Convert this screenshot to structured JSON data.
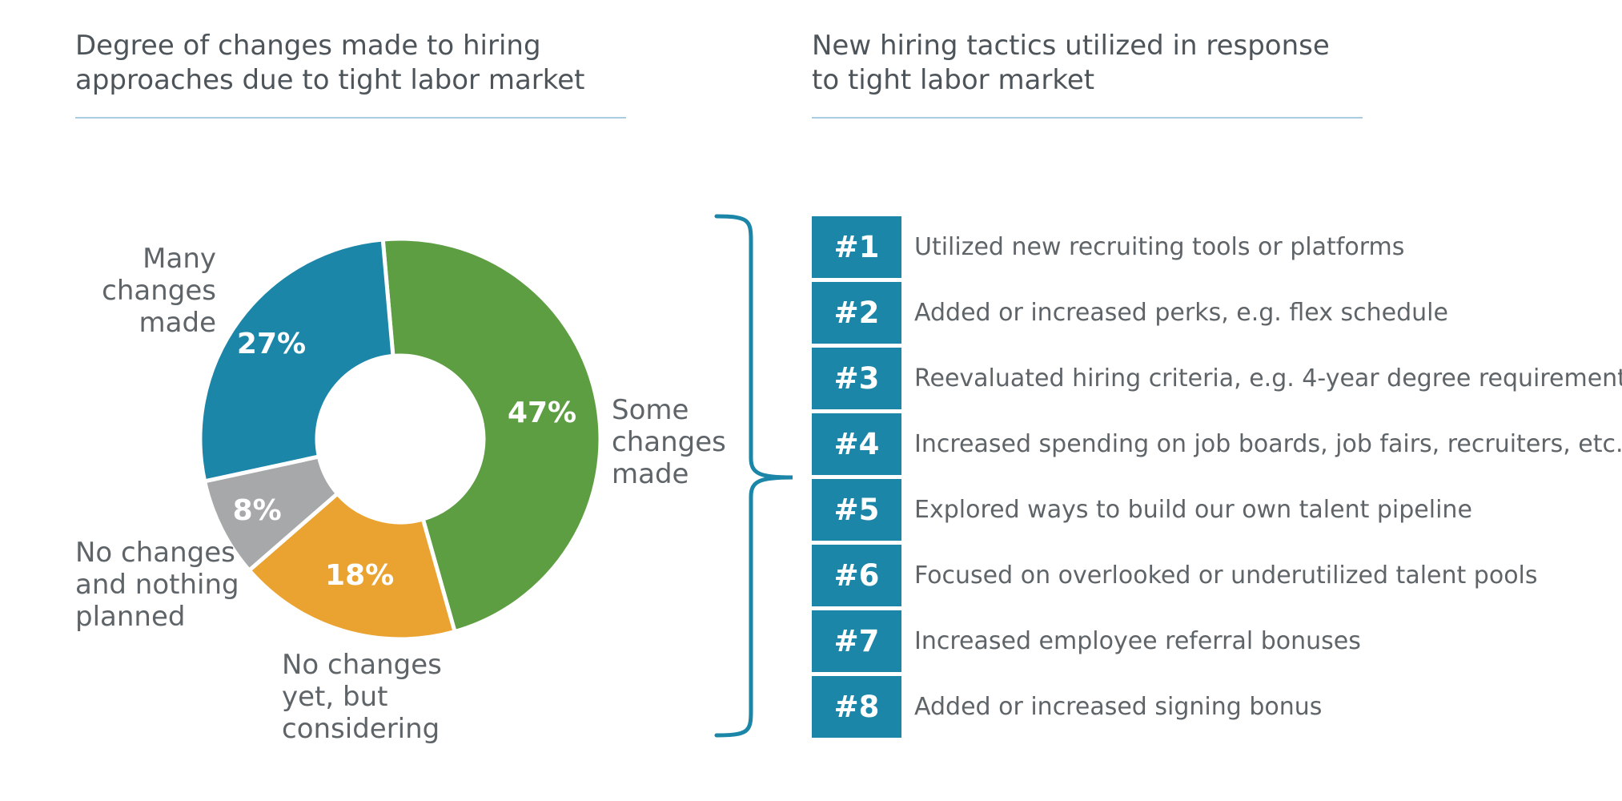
{
  "left_panel": {
    "title": "Degree of changes made to hiring\napproaches due to tight labor market"
  },
  "right_panel": {
    "title": "New hiring tactics utilized in response\nto tight labor market"
  },
  "colors": {
    "many_changes": "#1b86a8",
    "some_changes": "#5e9e42",
    "considering": "#eaa331",
    "nothing_planned": "#a6a8a9",
    "rank_box": "#1b86a8",
    "bracket": "#1b86a8",
    "rule": "#a9cde0"
  },
  "chart_data": [
    {
      "type": "pie",
      "title": "Degree of changes made to hiring approaches due to tight labor market",
      "slices": [
        {
          "key": "many",
          "label": "Many\nchanges\nmade",
          "value": 27,
          "value_label": "27%",
          "color": "#1b86a8"
        },
        {
          "key": "some",
          "label": "Some\nchanges\nmade",
          "value": 47,
          "value_label": "47%",
          "color": "#5e9e42"
        },
        {
          "key": "considering",
          "label": "No changes\nyet, but\nconsidering",
          "value": 18,
          "value_label": "18%",
          "color": "#eaa331"
        },
        {
          "key": "nothing",
          "label": "No changes\nand nothing\nplanned",
          "value": 8,
          "value_label": "8%",
          "color": "#a6a8a9"
        }
      ]
    },
    {
      "type": "table",
      "title": "New hiring tactics utilized in response to tight labor market",
      "rows": [
        {
          "rank": "#1",
          "text": "Utilized new recruiting tools or platforms"
        },
        {
          "rank": "#2",
          "text": "Added or increased perks, e.g. flex schedule"
        },
        {
          "rank": "#3",
          "text": "Reevaluated hiring criteria, e.g. 4-year degree requirement"
        },
        {
          "rank": "#4",
          "text": "Increased spending on job boards, job fairs, recruiters, etc."
        },
        {
          "rank": "#5",
          "text": "Explored ways to build our own talent pipeline"
        },
        {
          "rank": "#6",
          "text": "Focused on overlooked or underutilized talent pools"
        },
        {
          "rank": "#7",
          "text": "Increased employee referral bonuses"
        },
        {
          "rank": "#8",
          "text": "Added or increased signing bonus"
        }
      ]
    }
  ]
}
